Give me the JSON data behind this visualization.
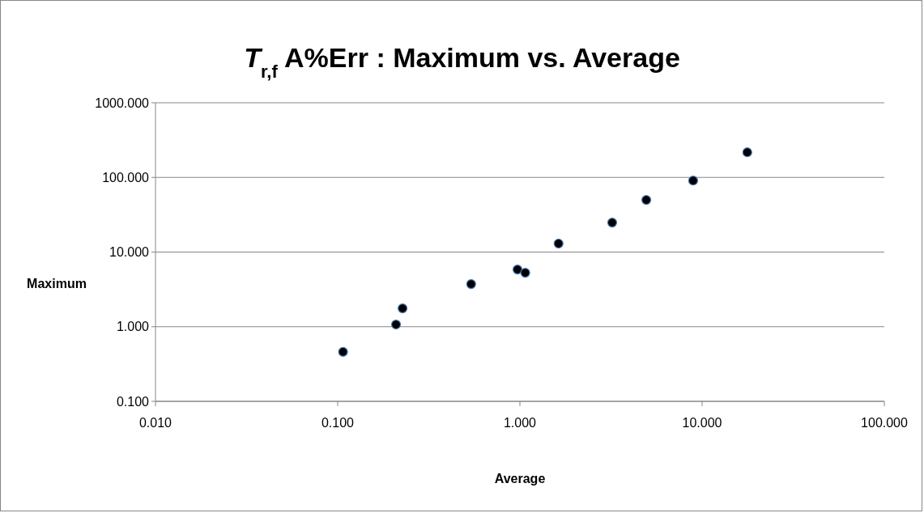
{
  "chart_data": {
    "type": "scatter",
    "title": "T$_{r,f}$  A%Err : Maximum vs. Average",
    "xlabel": "Average",
    "ylabel": "Maximum",
    "log": "xy",
    "grid": "y",
    "marker": "circle",
    "xlim": [
      0.01,
      100
    ],
    "xticks": [
      {
        "value": 0.01,
        "label": "0.010"
      },
      {
        "value": 0.1,
        "label": "0.100"
      },
      {
        "value": 1,
        "label": "1.000"
      },
      {
        "value": 10,
        "label": "10.000"
      },
      {
        "value": 100,
        "label": "100.000"
      }
    ],
    "ylim": [
      0.1,
      1000
    ],
    "yticks": [
      {
        "value": 0.1,
        "label": "0.100"
      },
      {
        "value": 1,
        "label": "1.000"
      },
      {
        "value": 10,
        "label": "10.000"
      },
      {
        "value": 100,
        "label": "100.000"
      },
      {
        "value": 1000,
        "label": "1000.000"
      }
    ],
    "series": [
      {
        "color": "#000000",
        "x": [
          0.107,
          0.209,
          0.227,
          0.54,
          0.97,
          1.07,
          1.63,
          3.21,
          4.94,
          8.93,
          17.7
        ],
        "values": [
          0.46,
          1.07,
          1.76,
          3.72,
          5.83,
          5.28,
          13.0,
          24.8,
          49.9,
          90.7,
          217
        ]
      }
    ]
  }
}
